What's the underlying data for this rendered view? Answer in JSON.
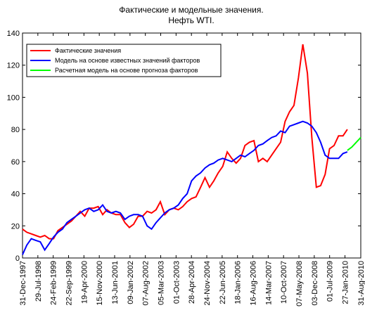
{
  "chart_data": {
    "type": "line",
    "title": "Фактические и модельные значения.",
    "subtitle": "Нефть WTI.",
    "x": [
      "1997-12-31",
      "1998-02-28",
      "1998-04-30",
      "1998-06-30",
      "1998-08-31",
      "1998-10-31",
      "1998-12-31",
      "1999-02-28",
      "1999-04-30",
      "1999-06-30",
      "1999-08-31",
      "1999-10-31",
      "1999-12-31",
      "2000-02-29",
      "2000-04-30",
      "2000-06-30",
      "2000-08-31",
      "2000-10-31",
      "2000-12-31",
      "2001-02-28",
      "2001-04-30",
      "2001-06-30",
      "2001-08-31",
      "2001-10-31",
      "2001-12-31",
      "2002-02-28",
      "2002-04-30",
      "2002-06-30",
      "2002-08-31",
      "2002-10-31",
      "2002-12-31",
      "2003-02-28",
      "2003-04-30",
      "2003-06-30",
      "2003-08-31",
      "2003-10-31",
      "2003-12-31",
      "2004-02-29",
      "2004-04-30",
      "2004-06-30",
      "2004-08-31",
      "2004-10-31",
      "2004-12-31",
      "2005-02-28",
      "2005-04-30",
      "2005-06-30",
      "2005-08-31",
      "2005-10-31",
      "2005-12-31",
      "2006-02-28",
      "2006-04-30",
      "2006-06-30",
      "2006-08-31",
      "2006-10-31",
      "2006-12-31",
      "2007-02-28",
      "2007-04-30",
      "2007-06-30",
      "2007-08-31",
      "2007-10-31",
      "2007-12-31",
      "2008-02-29",
      "2008-04-30",
      "2008-06-30",
      "2008-08-31",
      "2008-10-31",
      "2008-12-31",
      "2009-02-28",
      "2009-04-30",
      "2009-06-30",
      "2009-08-31",
      "2009-10-31",
      "2009-12-31",
      "2010-02-28",
      "2010-04-30",
      "2010-06-30",
      "2010-08-31"
    ],
    "series": [
      {
        "name": "Фактические значения",
        "color": "#ff0000",
        "values": [
          18,
          16,
          15,
          14,
          13,
          14,
          12,
          12,
          17,
          19,
          21,
          23,
          26,
          29,
          26,
          31,
          31,
          32,
          27,
          30,
          28,
          27,
          27,
          22,
          19,
          21,
          26,
          26,
          29,
          28,
          30,
          35,
          27,
          30,
          31,
          30,
          32,
          35,
          37,
          38,
          44,
          50,
          44,
          48,
          53,
          57,
          66,
          62,
          59,
          62,
          70,
          72,
          73,
          60,
          62,
          60,
          64,
          68,
          72,
          85,
          91,
          95,
          112,
          133,
          115,
          75,
          44,
          45,
          52,
          68,
          70,
          76,
          76,
          80,
          null,
          null,
          null
        ]
      },
      {
        "name": "Модель на основе известных значений факторов",
        "color": "#0000ff",
        "values": [
          2,
          8,
          12,
          11,
          10,
          5,
          9,
          13,
          16,
          18,
          22,
          24,
          26,
          28,
          30,
          31,
          29,
          30,
          33,
          29,
          28,
          29,
          28,
          24,
          26,
          27,
          27,
          26,
          20,
          18,
          22,
          25,
          28,
          30,
          31,
          33,
          37,
          40,
          48,
          51,
          53,
          56,
          58,
          59,
          61,
          62,
          61,
          60,
          62,
          64,
          63,
          65,
          67,
          70,
          71,
          73,
          75,
          76,
          79,
          78,
          82,
          83,
          84,
          85,
          84,
          82,
          78,
          72,
          64,
          62,
          62,
          62,
          65,
          66,
          null,
          null,
          null
        ]
      },
      {
        "name": "Расчетная модель на основе прогноза факторов",
        "color": "#00ff00",
        "values": [
          null,
          null,
          null,
          null,
          null,
          null,
          null,
          null,
          null,
          null,
          null,
          null,
          null,
          null,
          null,
          null,
          null,
          null,
          null,
          null,
          null,
          null,
          null,
          null,
          null,
          null,
          null,
          null,
          null,
          null,
          null,
          null,
          null,
          null,
          null,
          null,
          null,
          null,
          null,
          null,
          null,
          null,
          null,
          null,
          null,
          null,
          null,
          null,
          null,
          null,
          null,
          null,
          null,
          null,
          null,
          null,
          null,
          null,
          null,
          null,
          null,
          null,
          null,
          null,
          null,
          null,
          null,
          null,
          null,
          null,
          null,
          null,
          null,
          67,
          69,
          72,
          75
        ]
      }
    ],
    "xlim": [
      "1997-12-31",
      "2010-08-31"
    ],
    "xticks": [
      {
        "value": "1997-12-31",
        "label": "31-Dec-1997"
      },
      {
        "value": "1998-07-29",
        "label": "29-Jul-1998"
      },
      {
        "value": "1999-02-24",
        "label": "24-Feb-1999"
      },
      {
        "value": "1999-09-22",
        "label": "22-Sep-1999"
      },
      {
        "value": "2000-04-19",
        "label": "19-Apr-2000"
      },
      {
        "value": "2000-11-15",
        "label": "15-Nov-2000"
      },
      {
        "value": "2001-06-13",
        "label": "13-Jun-2001"
      },
      {
        "value": "2002-01-09",
        "label": "09-Jan-2002"
      },
      {
        "value": "2002-08-07",
        "label": "07-Aug-2002"
      },
      {
        "value": "2003-03-05",
        "label": "05-Mar-2003"
      },
      {
        "value": "2003-10-01",
        "label": "01-Oct-2003"
      },
      {
        "value": "2004-04-28",
        "label": "28-Apr-2004"
      },
      {
        "value": "2004-11-24",
        "label": "24-Nov-2004"
      },
      {
        "value": "2005-06-22",
        "label": "22-Jun-2005"
      },
      {
        "value": "2006-01-18",
        "label": "18-Jan-2006"
      },
      {
        "value": "2006-08-16",
        "label": "16-Aug-2006"
      },
      {
        "value": "2007-03-14",
        "label": "14-Mar-2007"
      },
      {
        "value": "2007-10-10",
        "label": "10-Oct-2007"
      },
      {
        "value": "2008-05-07",
        "label": "07-May-2008"
      },
      {
        "value": "2008-12-03",
        "label": "03-Dec-2008"
      },
      {
        "value": "2009-07-01",
        "label": "01-Jul-2009"
      },
      {
        "value": "2010-01-27",
        "label": "27-Jan-2010"
      },
      {
        "value": "2010-08-31",
        "label": "31-Aug-2010"
      }
    ],
    "ylim": [
      0,
      140
    ],
    "yticks": [
      0,
      20,
      40,
      60,
      80,
      100,
      120,
      140
    ],
    "legend": "upper left"
  }
}
